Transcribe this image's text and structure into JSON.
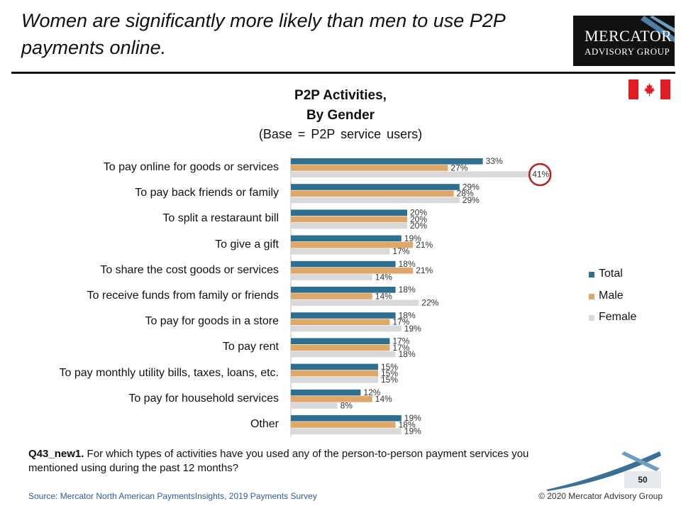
{
  "slide": {
    "headline": "Women are significantly more likely than men to use P2P payments online.",
    "logo_line1": "Mercator",
    "logo_line2": "Advisory Group",
    "question_id": "Q43_new1.",
    "question_text": " For which types of activities have you used any of the person-to-person payment services you mentioned using during the past 12 months?",
    "source": "Source: Mercator North American PaymentsInsights, 2019 Payments Survey",
    "copyright": "© 2020 Mercator Advisory Group",
    "page_number": "50"
  },
  "chart_data": {
    "type": "bar",
    "orientation": "horizontal",
    "title_line1": "P2P Activities,",
    "title_line2": "By Gender",
    "subtitle": "(Base = P2P service users)",
    "categories": [
      "To pay online for goods or services",
      "To pay back friends or family",
      "To split a restaraunt bill",
      "To give a gift",
      "To share the cost goods or services",
      "To receive funds from family or friends",
      "To pay for goods in a store",
      "To pay rent",
      "To pay monthly utility bills, taxes, loans, etc.",
      "To pay for household services",
      "Other"
    ],
    "series": [
      {
        "name": "Total",
        "color": "#2e6e8e",
        "values": [
          33,
          29,
          20,
          19,
          18,
          18,
          18,
          17,
          15,
          12,
          19
        ]
      },
      {
        "name": "Male",
        "color": "#e0a868",
        "values": [
          27,
          28,
          20,
          21,
          21,
          14,
          17,
          17,
          15,
          14,
          18
        ]
      },
      {
        "name": "Female",
        "color": "#d9d9d9",
        "values": [
          41,
          29,
          20,
          17,
          14,
          22,
          19,
          18,
          15,
          8,
          19
        ]
      }
    ],
    "value_suffix": "%",
    "xlim": [
      0,
      45
    ],
    "highlight": {
      "category_index": 0,
      "series": "Female",
      "style": "red circle"
    },
    "legend_position": "right",
    "grid": false
  }
}
